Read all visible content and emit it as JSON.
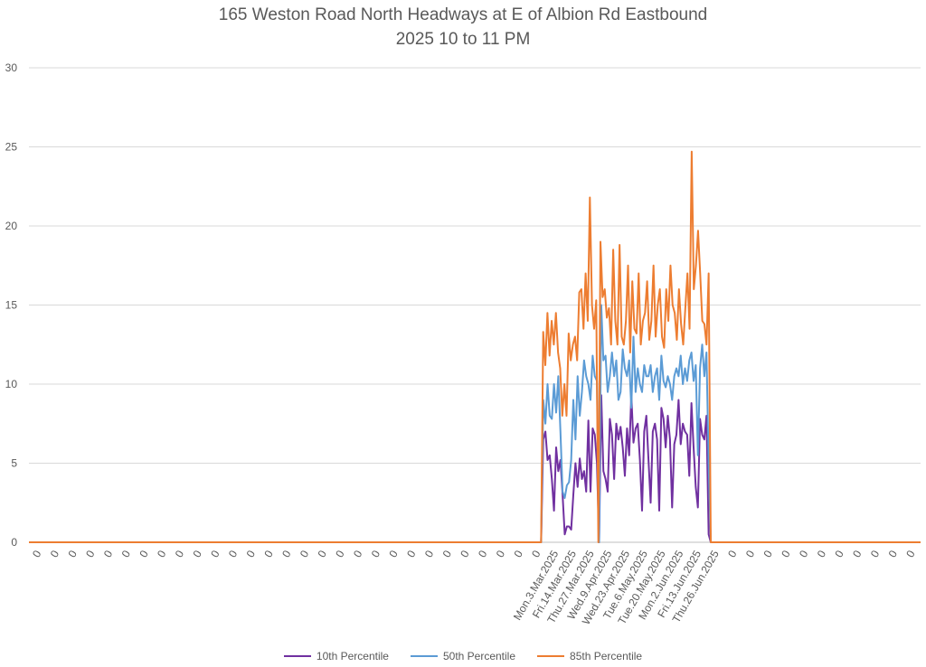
{
  "chart_data": {
    "type": "line",
    "title": "165 Weston Road North Headways at E of Albion Rd Eastbound",
    "subtitle": "2025 10 to 11 PM",
    "ylim": [
      0,
      30
    ],
    "yticks": [
      0,
      5,
      10,
      15,
      20,
      25,
      30
    ],
    "grid": true,
    "legend_position": "bottom",
    "x_tick_labels": [
      "0",
      "0",
      "0",
      "0",
      "0",
      "0",
      "0",
      "0",
      "0",
      "0",
      "0",
      "0",
      "0",
      "0",
      "0",
      "0",
      "0",
      "0",
      "0",
      "0",
      "0",
      "0",
      "0",
      "0",
      "0",
      "0",
      "0",
      "0",
      "0",
      "Mon.3.Mar.2025",
      "Fri.14.Mar.2025",
      "Thu.27.Mar.2025",
      "Wed.9.Apr.2025",
      "Wed.23.Apr.2025",
      "Tue.6.May.2025",
      "Tue.20.May.2025",
      "Mon.2.Jun.2025",
      "Fri.13.Jun.2025",
      "Thu.26.Jun.2025",
      "0",
      "0",
      "0",
      "0",
      "0",
      "0",
      "0",
      "0",
      "0",
      "0",
      "0"
    ],
    "series_colors": [
      "#7030A0",
      "#5B9BD5",
      "#ED7D31"
    ],
    "series": [
      {
        "name": "10th Percentile",
        "values": [
          0,
          0,
          6.5,
          7,
          5.2,
          5.5,
          4,
          2,
          6,
          4.5,
          5.2,
          3,
          0.5,
          1,
          1,
          0.8,
          3,
          5,
          3.5,
          5.3,
          4,
          4.5,
          3.2,
          7.7,
          3.2,
          7.2,
          6.8,
          5,
          0,
          9.3,
          4.5,
          4,
          3.2,
          7.8,
          6.8,
          4,
          7.5,
          6.5,
          7.3,
          6,
          4.2,
          7.2,
          5.5,
          9.3,
          6.3,
          7.2,
          7.5,
          5.2,
          2,
          7,
          8,
          5.2,
          2.5,
          7,
          7.5,
          6.5,
          2,
          8.5,
          7.8,
          6,
          8,
          6.5,
          2.2,
          6.2,
          6.8,
          9,
          6.2,
          7.5,
          7,
          6.8,
          4.2,
          8.8,
          6,
          3.5,
          2.2,
          7.8,
          6.8,
          6.5,
          8,
          0.5,
          0
        ]
      },
      {
        "name": "50th Percentile",
        "values": [
          0,
          0,
          9,
          7.5,
          10,
          8,
          7.8,
          10,
          8.2,
          10.5,
          7,
          3.2,
          2.8,
          3.6,
          3.8,
          5.2,
          9,
          6.5,
          10.5,
          8,
          9.5,
          11.5,
          10.5,
          10,
          9,
          11.8,
          10.5,
          10.2,
          0,
          15,
          11.5,
          11.8,
          9.5,
          10.5,
          12,
          10.5,
          11.5,
          9,
          9.5,
          12.2,
          11,
          10.5,
          11.5,
          8.5,
          13,
          9.5,
          11,
          10,
          9.5,
          11.2,
          10.5,
          10.5,
          11.2,
          9.5,
          10.5,
          11,
          9,
          11.8,
          10.2,
          9.8,
          10.5,
          10,
          9,
          10.5,
          11,
          10.5,
          11.8,
          10,
          11,
          10.2,
          11.5,
          12,
          10.2,
          11.2,
          5.5,
          11,
          12.5,
          10.5,
          12,
          5,
          0
        ]
      },
      {
        "name": "85th Percentile",
        "values": [
          0,
          0,
          13.3,
          11.2,
          14.5,
          11.8,
          14,
          12.5,
          14.5,
          12,
          11,
          8,
          10,
          8,
          13.2,
          11.5,
          12.5,
          13,
          11.5,
          15.8,
          16,
          13.5,
          17,
          14,
          21.8,
          15,
          13.5,
          15.3,
          0,
          19,
          15.5,
          16,
          14.2,
          14.8,
          12.5,
          18.5,
          14,
          12.5,
          18.8,
          13,
          12.5,
          14,
          17.5,
          12,
          16.5,
          13.5,
          13.2,
          17,
          12.5,
          14,
          14.5,
          16.5,
          12.8,
          14,
          17.5,
          13,
          15,
          16,
          13,
          12.3,
          16,
          14,
          17.5,
          15,
          14.5,
          12.8,
          16,
          13.8,
          12.5,
          14.8,
          17,
          13.5,
          24.7,
          16,
          17.5,
          19.7,
          17,
          14,
          13.8,
          12.5,
          17,
          0
        ]
      }
    ]
  }
}
